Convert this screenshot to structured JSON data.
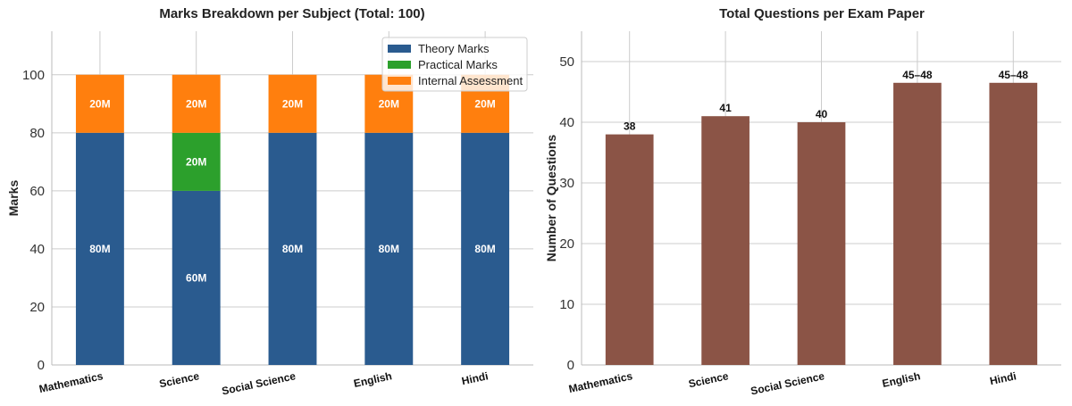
{
  "chart_data": [
    {
      "type": "bar",
      "stacked": true,
      "title": "Marks Breakdown per Subject (Total: 100)",
      "xlabel": "",
      "ylabel": "Marks",
      "ylim": [
        0,
        115
      ],
      "yticks": [
        0,
        20,
        40,
        60,
        80,
        100
      ],
      "grid": true,
      "legend_position": "top-right",
      "categories": [
        "Mathematics",
        "Science",
        "Social Science",
        "English",
        "Hindi"
      ],
      "series": [
        {
          "name": "Theory Marks",
          "color": "#2a5b8f",
          "values": [
            80,
            60,
            80,
            80,
            80
          ],
          "labels": [
            "80M",
            "60M",
            "80M",
            "80M",
            "80M"
          ]
        },
        {
          "name": "Practical Marks",
          "color": "#2ca02c",
          "values": [
            0,
            20,
            0,
            0,
            0
          ],
          "labels": [
            "",
            "20M",
            "",
            "",
            ""
          ]
        },
        {
          "name": "Internal Assessment",
          "color": "#ff7f0e",
          "values": [
            20,
            20,
            20,
            20,
            20
          ],
          "labels": [
            "20M",
            "20M",
            "20M",
            "20M",
            "20M"
          ]
        }
      ]
    },
    {
      "type": "bar",
      "title": "Total Questions per Exam Paper",
      "xlabel": "",
      "ylabel": "Number of Questions",
      "ylim": [
        0,
        55
      ],
      "yticks": [
        0,
        10,
        20,
        30,
        40,
        50
      ],
      "grid": true,
      "categories": [
        "Mathematics",
        "Science",
        "Social Science",
        "English",
        "Hindi"
      ],
      "color": "#8b5446",
      "values": [
        38,
        41,
        40,
        46.5,
        46.5
      ],
      "labels": [
        "38",
        "41",
        "40",
        "45–48",
        "45–48"
      ]
    }
  ]
}
